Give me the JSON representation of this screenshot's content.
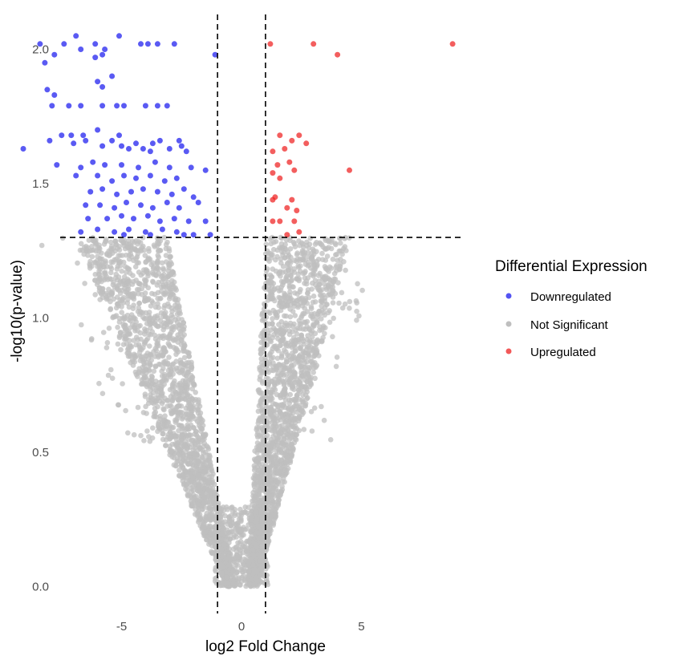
{
  "chart_data": {
    "type": "scatter",
    "title": "",
    "xlabel": "log2 Fold Change",
    "ylabel": "-log10(p-value)",
    "xlim": [
      -9.4,
      9.6
    ],
    "ylim": [
      -0.1,
      2.13
    ],
    "x_ticks": [
      -5,
      0,
      5
    ],
    "y_ticks": [
      0.0,
      0.5,
      1.0,
      1.5,
      2.0
    ],
    "y_tick_labels": [
      "0.0",
      "0.5",
      "1.0",
      "1.5",
      "2.0"
    ],
    "grid": false,
    "thresholds": {
      "log2fc": [
        -1,
        1
      ],
      "neg_log10_p": 1.3
    },
    "legend": {
      "title": "Differential Expression",
      "position": "right",
      "entries": [
        {
          "name": "Downregulated",
          "color": "#1a1aee"
        },
        {
          "name": "Not Significant",
          "color": "#bfbfbf"
        },
        {
          "name": "Upregulated",
          "color": "#ee2020"
        }
      ]
    },
    "series": [
      {
        "name": "Downregulated",
        "color": "#1a1aee",
        "points": [
          [
            -8.4,
            2.02
          ],
          [
            -7.4,
            2.02
          ],
          [
            -6.1,
            2.02
          ],
          [
            -4.2,
            2.02
          ],
          [
            -3.9,
            2.02
          ],
          [
            -3.5,
            2.02
          ],
          [
            -2.8,
            2.02
          ],
          [
            -1.1,
            1.98
          ],
          [
            -8.2,
            1.95
          ],
          [
            -6.7,
            2.0
          ],
          [
            -5.8,
            1.98
          ],
          [
            -5.7,
            2.0
          ],
          [
            -6.9,
            2.05
          ],
          [
            -5.1,
            2.05
          ],
          [
            -7.8,
            1.98
          ],
          [
            -6.1,
            1.97
          ],
          [
            -6.0,
            1.88
          ],
          [
            -5.4,
            1.9
          ],
          [
            -8.1,
            1.85
          ],
          [
            -7.8,
            1.83
          ],
          [
            -5.8,
            1.86
          ],
          [
            -7.9,
            1.79
          ],
          [
            -7.2,
            1.79
          ],
          [
            -6.7,
            1.79
          ],
          [
            -5.8,
            1.79
          ],
          [
            -5.2,
            1.79
          ],
          [
            -4.9,
            1.79
          ],
          [
            -4.0,
            1.79
          ],
          [
            -3.5,
            1.79
          ],
          [
            -3.1,
            1.79
          ],
          [
            -8.0,
            1.66
          ],
          [
            -7.5,
            1.68
          ],
          [
            -7.1,
            1.68
          ],
          [
            -6.6,
            1.68
          ],
          [
            -6.0,
            1.7
          ],
          [
            -5.1,
            1.68
          ],
          [
            -4.4,
            1.65
          ],
          [
            -3.7,
            1.65
          ],
          [
            -3.4,
            1.66
          ],
          [
            -2.6,
            1.66
          ],
          [
            -9.1,
            1.63
          ],
          [
            -7.0,
            1.65
          ],
          [
            -6.5,
            1.66
          ],
          [
            -5.8,
            1.64
          ],
          [
            -5.4,
            1.66
          ],
          [
            -5.0,
            1.64
          ],
          [
            -4.7,
            1.63
          ],
          [
            -4.1,
            1.63
          ],
          [
            -3.8,
            1.62
          ],
          [
            -3.0,
            1.63
          ],
          [
            -2.5,
            1.64
          ],
          [
            -2.3,
            1.62
          ],
          [
            -7.7,
            1.57
          ],
          [
            -6.7,
            1.56
          ],
          [
            -6.2,
            1.58
          ],
          [
            -5.7,
            1.57
          ],
          [
            -5.0,
            1.57
          ],
          [
            -4.3,
            1.56
          ],
          [
            -3.6,
            1.58
          ],
          [
            -3.0,
            1.56
          ],
          [
            -2.1,
            1.56
          ],
          [
            -6.9,
            1.53
          ],
          [
            -6.0,
            1.53
          ],
          [
            -5.4,
            1.51
          ],
          [
            -4.9,
            1.53
          ],
          [
            -4.4,
            1.52
          ],
          [
            -3.8,
            1.53
          ],
          [
            -3.2,
            1.51
          ],
          [
            -2.7,
            1.52
          ],
          [
            -1.5,
            1.55
          ],
          [
            -6.3,
            1.47
          ],
          [
            -5.8,
            1.48
          ],
          [
            -5.2,
            1.46
          ],
          [
            -4.6,
            1.47
          ],
          [
            -4.1,
            1.48
          ],
          [
            -3.5,
            1.47
          ],
          [
            -2.9,
            1.46
          ],
          [
            -2.4,
            1.48
          ],
          [
            -2.0,
            1.45
          ],
          [
            -6.5,
            1.42
          ],
          [
            -5.9,
            1.42
          ],
          [
            -5.3,
            1.41
          ],
          [
            -4.8,
            1.43
          ],
          [
            -4.2,
            1.42
          ],
          [
            -3.7,
            1.41
          ],
          [
            -3.1,
            1.43
          ],
          [
            -2.6,
            1.41
          ],
          [
            -1.8,
            1.43
          ],
          [
            -6.4,
            1.37
          ],
          [
            -5.6,
            1.37
          ],
          [
            -5.0,
            1.38
          ],
          [
            -4.5,
            1.37
          ],
          [
            -3.9,
            1.38
          ],
          [
            -3.4,
            1.36
          ],
          [
            -2.8,
            1.37
          ],
          [
            -2.2,
            1.36
          ],
          [
            -1.5,
            1.36
          ],
          [
            -6.7,
            1.32
          ],
          [
            -6.0,
            1.33
          ],
          [
            -5.3,
            1.32
          ],
          [
            -4.7,
            1.33
          ],
          [
            -4.0,
            1.32
          ],
          [
            -3.3,
            1.33
          ],
          [
            -2.7,
            1.32
          ],
          [
            -2.0,
            1.31
          ],
          [
            -1.3,
            1.31
          ],
          [
            -4.9,
            1.31
          ],
          [
            -3.8,
            1.31
          ],
          [
            -2.4,
            1.31
          ]
        ]
      },
      {
        "name": "Upregulated",
        "color": "#ee2020",
        "points": [
          [
            1.2,
            2.02
          ],
          [
            3.0,
            2.02
          ],
          [
            8.8,
            2.02
          ],
          [
            4.0,
            1.98
          ],
          [
            1.6,
            1.68
          ],
          [
            2.1,
            1.66
          ],
          [
            2.4,
            1.68
          ],
          [
            2.7,
            1.65
          ],
          [
            1.3,
            1.62
          ],
          [
            1.8,
            1.63
          ],
          [
            1.5,
            1.57
          ],
          [
            2.0,
            1.58
          ],
          [
            4.5,
            1.55
          ],
          [
            1.3,
            1.54
          ],
          [
            2.2,
            1.55
          ],
          [
            1.6,
            1.52
          ],
          [
            1.4,
            1.45
          ],
          [
            1.3,
            1.44
          ],
          [
            2.1,
            1.44
          ],
          [
            1.9,
            1.41
          ],
          [
            2.3,
            1.4
          ],
          [
            1.3,
            1.36
          ],
          [
            1.6,
            1.36
          ],
          [
            2.2,
            1.36
          ],
          [
            2.4,
            1.32
          ],
          [
            1.9,
            1.31
          ]
        ]
      }
    ]
  }
}
